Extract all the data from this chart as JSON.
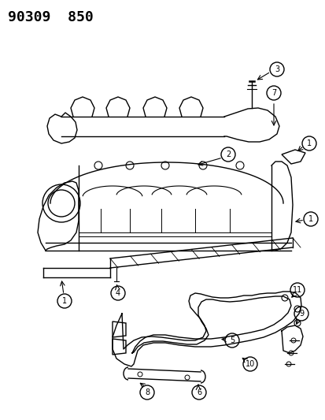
{
  "title_code": "90309  850",
  "bg_color": "#ffffff",
  "line_color": "#000000",
  "title_fontsize": 13,
  "label_fontsize": 8
}
